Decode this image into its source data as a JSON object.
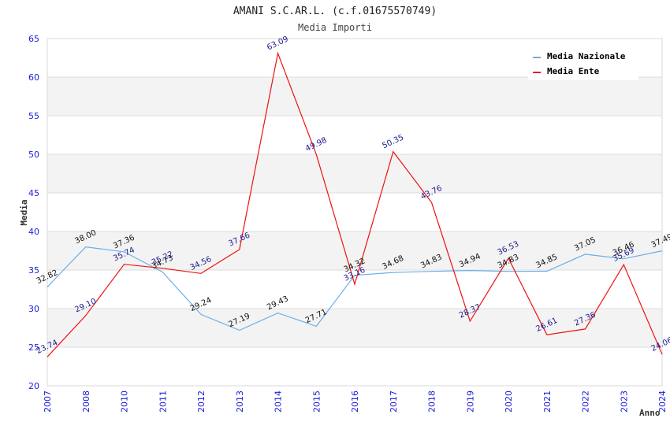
{
  "chart_data": {
    "type": "line",
    "title": "AMANI S.C.AR.L. (c.f.01675570749)",
    "subtitle": "Media Importi",
    "xlabel": "Anno",
    "ylabel": "Media",
    "ylim": [
      20,
      65
    ],
    "yticks": [
      "20",
      "25",
      "30",
      "35",
      "40",
      "45",
      "50",
      "55",
      "60",
      "65"
    ],
    "grid": true,
    "legend_position": "top-right",
    "categories": [
      "2007",
      "2008",
      "2010",
      "2011",
      "2012",
      "2013",
      "2014",
      "2015",
      "2016",
      "2017",
      "2018",
      "2019",
      "2020",
      "2021",
      "2022",
      "2023",
      "2024"
    ],
    "series": [
      {
        "name": "Media Nazionale",
        "color": "#6aaee8",
        "values": [
          32.82,
          38.0,
          37.36,
          34.73,
          29.24,
          27.19,
          29.43,
          27.71,
          34.32,
          34.68,
          34.83,
          34.94,
          34.83,
          34.85,
          37.05,
          36.46,
          37.49
        ],
        "labels": [
          "32.82",
          "38.00",
          "37.36",
          "34.73",
          "29.24",
          "27.19",
          "29.43",
          "27.71",
          "34.32",
          "34.68",
          "34.83",
          "34.94",
          "34.83",
          "34.85",
          "37.05",
          "36.46",
          "37.49"
        ]
      },
      {
        "name": "Media Ente",
        "color": "#ee1111",
        "values": [
          23.74,
          29.1,
          35.74,
          35.22,
          34.56,
          37.66,
          63.09,
          49.98,
          33.16,
          50.35,
          43.76,
          28.37,
          36.53,
          26.61,
          27.36,
          35.69,
          24.06
        ],
        "labels": [
          "23.74",
          "29.10",
          "35.74",
          "35.22",
          "34.56",
          "37.66",
          "63.09",
          "49.98",
          "33.16",
          "50.35",
          "43.76",
          "28.37",
          "36.53",
          "26.61",
          "27.36",
          "35.69",
          "24.06"
        ]
      }
    ]
  }
}
